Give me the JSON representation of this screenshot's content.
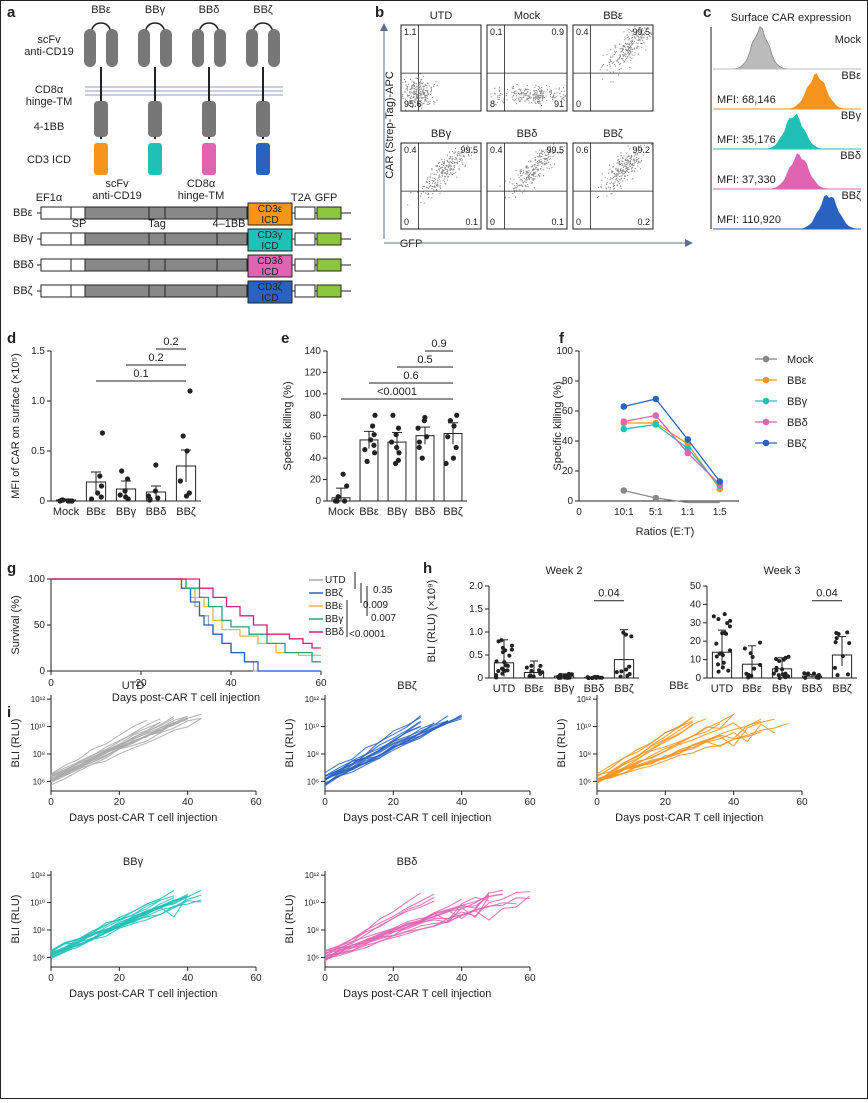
{
  "colors": {
    "BBe": "#f7941d",
    "BBg": "#1fc1b7",
    "BBd": "#e064b2",
    "BBz": "#2a62c1",
    "mock": "#888888",
    "utd": "#aaaaaa",
    "gfp": "#8cc63f",
    "axis": "#222222"
  },
  "panel_a": {
    "label": "a",
    "cars": [
      "BBε",
      "BBγ",
      "BBδ",
      "BBζ"
    ],
    "domains": [
      "scFv\nanti-CD19",
      "CD8α\nhinge-TM",
      "4-1BB",
      "CD3 ICD"
    ],
    "construct_top": [
      "EF1α",
      "scFv\nanti-CD19",
      "CD8α\nhinge-TM",
      "T2A",
      "GFP"
    ],
    "construct_sub": [
      "SP",
      "Tag",
      "4–1BB"
    ],
    "rows": [
      "BBε",
      "BBγ",
      "BBδ",
      "BBζ"
    ],
    "icd": [
      "CD3ε\nICD",
      "CD3γ\nICD",
      "CD3δ\nICD",
      "CD3ζ\nICD"
    ]
  },
  "panel_b": {
    "label": "b",
    "ylabel": "CAR (Strep-Tag)-APC",
    "xlabel": "GFP",
    "plots": [
      {
        "title": "UTD",
        "q": [
          "1.1",
          "",
          "95.6",
          ""
        ]
      },
      {
        "title": "Mock",
        "q": [
          "0.1",
          "0.9",
          "8",
          "91"
        ]
      },
      {
        "title": "BBε",
        "q": [
          "0.4",
          "99.5",
          "0",
          ""
        ]
      },
      {
        "title": "BBγ",
        "q": [
          "0.4",
          "99.5",
          "0",
          "0.1"
        ]
      },
      {
        "title": "BBδ",
        "q": [
          "0.4",
          "99.5",
          "0",
          "0.1"
        ]
      },
      {
        "title": "BBζ",
        "q": [
          "0.6",
          "99.2",
          "0",
          "0.2"
        ]
      }
    ]
  },
  "panel_c": {
    "label": "c",
    "title": "Surface CAR expression",
    "rows": [
      {
        "name": "Mock",
        "mfi": ""
      },
      {
        "name": "BBε",
        "mfi": "MFI: 68,146"
      },
      {
        "name": "BBγ",
        "mfi": "MFI: 35,176"
      },
      {
        "name": "BBδ",
        "mfi": "MFI: 37,330"
      },
      {
        "name": "BBζ",
        "mfi": "MFI: 110,920"
      }
    ]
  },
  "panel_d": {
    "label": "d",
    "ylabel": "MFI of CAR on surface (×10⁵)",
    "categories": [
      "Mock",
      "BBε",
      "BBγ",
      "BBδ",
      "BBζ"
    ],
    "yticks": [
      "0",
      "0.5",
      "1.0",
      "1.5"
    ],
    "bars": [
      0.01,
      0.19,
      0.12,
      0.09,
      0.35
    ],
    "err": [
      0.01,
      0.1,
      0.08,
      0.06,
      0.16
    ],
    "points": [
      [
        0,
        0,
        0.01,
        0,
        0.01,
        0
      ],
      [
        0.68,
        0.25,
        0.15,
        0.08,
        0.04,
        0.02
      ],
      [
        0.3,
        0.22,
        0.1,
        0.06,
        0.04,
        0.02
      ],
      [
        0.36,
        0.1,
        0.05,
        0.03,
        0.02,
        0.01
      ],
      [
        1.1,
        0.65,
        0.5,
        0.2,
        0.08,
        0.05
      ]
    ],
    "pvals": [
      "0.2",
      "0.2",
      "0.1"
    ]
  },
  "panel_e": {
    "label": "e",
    "ylabel": "Specific killing (%)",
    "categories": [
      "Mock",
      "BBε",
      "BBγ",
      "BBδ",
      "BBζ"
    ],
    "yticks": [
      "0",
      "20",
      "40",
      "60",
      "80",
      "100",
      "120",
      "140"
    ],
    "bars": [
      3,
      57,
      55,
      61,
      63
    ],
    "err": [
      9,
      8,
      9,
      8,
      10
    ],
    "points": [
      [
        25,
        14,
        4,
        0,
        0,
        0,
        0
      ],
      [
        80,
        70,
        62,
        57,
        52,
        48,
        45,
        37
      ],
      [
        80,
        68,
        62,
        55,
        50,
        45,
        38,
        35
      ],
      [
        78,
        75,
        68,
        60,
        55,
        50,
        40
      ],
      [
        80,
        75,
        70,
        60,
        50,
        40,
        35
      ]
    ],
    "pvals": [
      "0.9",
      "0.5",
      "0.6",
      "<0.0001"
    ]
  },
  "panel_f": {
    "label": "f",
    "ylabel": "Specific killing (%)",
    "xlabel": "Ratios (E:T)",
    "categories": [
      "10:1",
      "5:1",
      "1:1",
      "1:5"
    ],
    "yticks": [
      "0",
      "20",
      "40",
      "60",
      "80",
      "100"
    ],
    "series": [
      {
        "name": "Mock",
        "values": [
          7,
          2,
          -5,
          -3
        ]
      },
      {
        "name": "BBε",
        "values": [
          52,
          52,
          38,
          8
        ]
      },
      {
        "name": "BBγ",
        "values": [
          48,
          51,
          35,
          10
        ]
      },
      {
        "name": "BBδ",
        "values": [
          53,
          57,
          32,
          11
        ]
      },
      {
        "name": "BBζ",
        "values": [
          63,
          68,
          41,
          13
        ]
      }
    ]
  },
  "panel_g": {
    "label": "g",
    "ylabel": "Survival (%)",
    "xlabel": "Days post-CAR T cell injection",
    "xticks": [
      "0",
      "20",
      "40",
      "60"
    ],
    "yticks": [
      "0",
      "50",
      "100"
    ],
    "legend": [
      "UTD",
      "BBζ",
      "BBε",
      "BBγ",
      "BBδ"
    ],
    "pvals": [
      "0.35",
      "0.009",
      "0.007",
      "<0.0001"
    ]
  },
  "panel_h": {
    "label": "h",
    "ylabel": "BLI (RLU) (×10⁹)",
    "week2": {
      "title": "Week 2",
      "yticks": [
        "0",
        "0.5",
        "1.0",
        "1.5",
        "2.0"
      ],
      "bars": [
        0.33,
        0.12,
        0.04,
        0.01,
        0.4
      ],
      "err": [
        0.5,
        0.25,
        0.05,
        0.01,
        0.65
      ],
      "pval": "0.04"
    },
    "week3": {
      "title": "Week 3",
      "yticks": [
        "0",
        "10",
        "20",
        "30",
        "40",
        "50"
      ],
      "bars": [
        14,
        7.5,
        5,
        1,
        12.5
      ],
      "err": [
        12,
        10,
        6,
        1,
        10
      ],
      "pval": "0.04"
    },
    "categories": [
      "UTD",
      "BBε",
      "BBγ",
      "BBδ",
      "BBζ"
    ]
  },
  "panel_i": {
    "label": "i",
    "ylabel": "BLI (RLU)",
    "xlabel": "Days post-CAR T cell injection",
    "xticks": [
      "0",
      "20",
      "40",
      "60"
    ],
    "yticks": [
      "10⁶",
      "10⁸",
      "10¹⁰",
      "10¹²"
    ],
    "plots": [
      "UTD",
      "BBζ",
      "BBε",
      "BBγ",
      "BBδ"
    ]
  }
}
